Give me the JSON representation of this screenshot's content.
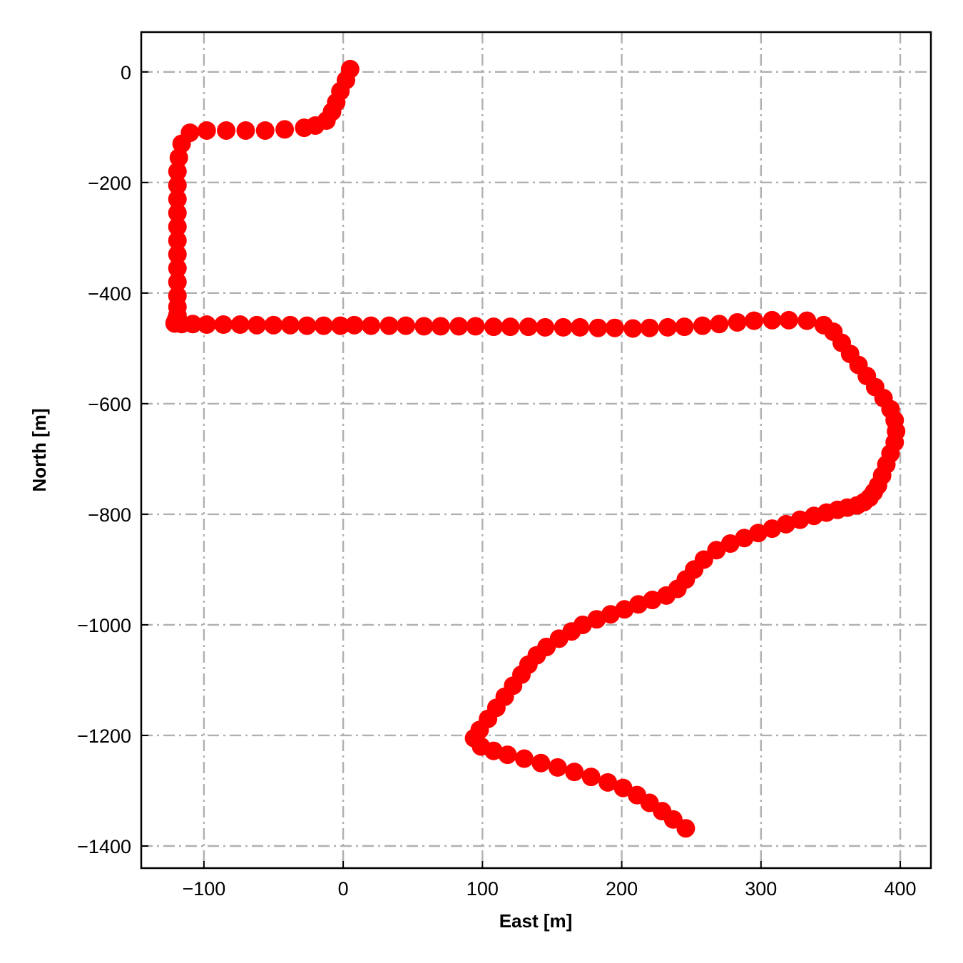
{
  "chart_data": {
    "type": "scatter",
    "xlabel": "East [m]",
    "ylabel": "North [m]",
    "xlim": [
      -145,
      422
    ],
    "ylim": [
      -1440,
      72
    ],
    "x_ticks": [
      -100,
      0,
      100,
      200,
      300,
      400
    ],
    "y_ticks": [
      0,
      -200,
      -400,
      -600,
      -800,
      -1000,
      -1200,
      -1400
    ],
    "x_tick_labels": [
      "−100",
      "0",
      "100",
      "200",
      "300",
      "400"
    ],
    "y_tick_labels": [
      "0",
      "−200",
      "−400",
      "−600",
      "−800",
      "−1000",
      "−1200",
      "−1400"
    ],
    "grid": true,
    "marker_color": "#ff0000",
    "grid_color": "#b0b0b0",
    "series": [
      {
        "x": [
          5,
          2,
          -2,
          -5,
          -8,
          -12,
          -20,
          -28,
          -42,
          -56,
          -70,
          -84,
          -98,
          -110,
          -116,
          -118,
          -119,
          -119,
          -119,
          -119,
          -119,
          -119,
          -119,
          -119,
          -119,
          -119,
          -119,
          -119,
          -120,
          -120,
          -120,
          -120,
          -120,
          -120,
          -121,
          -121,
          -116,
          -108,
          -98,
          -86,
          -74,
          -62,
          -50,
          -38,
          -26,
          -14,
          -2,
          8,
          20,
          33,
          45,
          58,
          70,
          83,
          95,
          108,
          120,
          133,
          145,
          158,
          170,
          183,
          195,
          208,
          220,
          233,
          245,
          258,
          270,
          283,
          295,
          308,
          320,
          333,
          345,
          352,
          358,
          364,
          370,
          376,
          382,
          388,
          393,
          396,
          397,
          396,
          393,
          390,
          387,
          384,
          381,
          378,
          374,
          369,
          362,
          355,
          347,
          338,
          328,
          318,
          308,
          298,
          288,
          278,
          268,
          259,
          252,
          246,
          240,
          232,
          222,
          212,
          202,
          192,
          182,
          172,
          164,
          155,
          146,
          139,
          133,
          128,
          122,
          116,
          110,
          104,
          98,
          94,
          99,
          108,
          118,
          130,
          142,
          154,
          166,
          178,
          190,
          201,
          211,
          220,
          229,
          237,
          246
        ],
        "y": [
          5,
          -15,
          -35,
          -55,
          -72,
          -88,
          -97,
          -101,
          -104,
          -106,
          -106,
          -106,
          -106,
          -110,
          -130,
          -155,
          -180,
          -205,
          -230,
          -255,
          -280,
          -305,
          -330,
          -355,
          -380,
          -405,
          -425,
          -440,
          -448,
          -449,
          -450,
          -451,
          -452,
          -453,
          -454,
          -455,
          -456,
          -456,
          -457,
          -457,
          -457,
          -458,
          -458,
          -458,
          -459,
          -459,
          -459,
          -458,
          -459,
          -459,
          -459,
          -460,
          -460,
          -460,
          -460,
          -461,
          -461,
          -461,
          -462,
          -462,
          -462,
          -463,
          -463,
          -464,
          -463,
          -462,
          -461,
          -459,
          -456,
          -453,
          -450,
          -449,
          -449,
          -450,
          -458,
          -470,
          -490,
          -510,
          -530,
          -550,
          -570,
          -590,
          -610,
          -630,
          -650,
          -670,
          -690,
          -710,
          -730,
          -748,
          -760,
          -770,
          -778,
          -784,
          -788,
          -792,
          -797,
          -803,
          -810,
          -818,
          -826,
          -834,
          -843,
          -853,
          -865,
          -882,
          -900,
          -918,
          -935,
          -947,
          -955,
          -963,
          -972,
          -981,
          -990,
          -1000,
          -1012,
          -1025,
          -1040,
          -1055,
          -1072,
          -1090,
          -1110,
          -1130,
          -1150,
          -1170,
          -1190,
          -1205,
          -1220,
          -1228,
          -1235,
          -1242,
          -1250,
          -1258,
          -1266,
          -1275,
          -1285,
          -1295,
          -1308,
          -1322,
          -1337,
          -1352,
          -1368
        ]
      }
    ]
  }
}
